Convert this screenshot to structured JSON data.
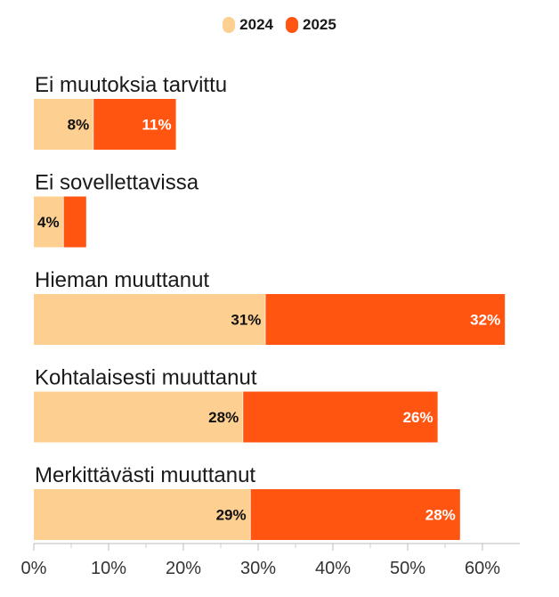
{
  "chart_data": {
    "type": "bar",
    "orientation": "horizontal",
    "stacked": true,
    "categories": [
      "Ei muutoksia tarvittu",
      "Ei sovellettavissa",
      "Hieman muuttanut",
      "Kohtalaisesti muuttanut",
      "Merkittävästi muuttanut"
    ],
    "series": [
      {
        "name": "2024",
        "color": "#FDD092",
        "values": [
          8,
          4,
          31,
          28,
          29
        ],
        "labels": [
          "8%",
          "4%",
          "31%",
          "28%",
          "29%"
        ],
        "label_color": "#111111"
      },
      {
        "name": "2025",
        "color": "#FF5511",
        "values": [
          11,
          3,
          32,
          26,
          28
        ],
        "labels": [
          "11%",
          "",
          "32%",
          "26%",
          "28%"
        ],
        "label_color": "#ffffff"
      }
    ],
    "xlim": [
      0,
      65
    ],
    "xticks": [
      0,
      10,
      20,
      30,
      40,
      50,
      60
    ],
    "xtick_labels": [
      "0%",
      "10%",
      "20%",
      "30%",
      "40%",
      "50%",
      "60%"
    ],
    "legend_position": "top-center",
    "grid": false
  }
}
